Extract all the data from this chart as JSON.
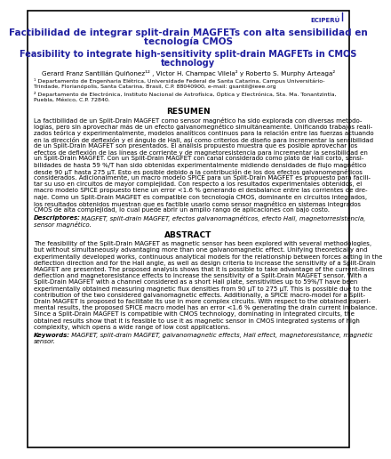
{
  "bg_color": "#ffffff",
  "border_color": "#000000",
  "title_es_line1": "Factibilidad de integrar split-drain MAGFETs con alta sensibilidad en",
  "title_es_line2": "tecnología CMOS",
  "title_en_line1": "Feasibility to integrate high-sensitivity split-drain MAGFETs in CMOS",
  "title_en_line2": "technology",
  "authors": "Gerard Franz Santillán Quiñonez¹² , Victor H. Champac Vilela² y Roberto S. Murphy Arteaga²",
  "affil1_line1": "¹ Departamento de Engenharia Elétrica, Universidade Federal de Santa Catarina, Campus Universitário-",
  "affil1_line2": "Trindade, Florianópolis, Santa Catarina, Brasil, C.P. 88040900, e-mail: gsantil@ieee.org",
  "affil2_line1": "² Departamento de Electrónica, Instituto Nacional de Astrofísica, Óptica y Electrónica, Sta. Ma. Tonantzintla,",
  "affil2_line2": "Puebla, México, C.P. 72840.",
  "resumen_title": "RESUMEN",
  "resumen_lines": [
    "La factibilidad de un Split-Drain MAGFET como sensor magnético ha sido explorada con diversas metodo-",
    "logías, pero sin aprovechar más de un efecto galvanomegnético simultáneamente. Unificando trabajos reali-",
    "zados teórica y experimentalmente, modelos analíticos continuos para la relación entre las fuerzas actuando",
    "en la dirección de deflexión y el ángulo de Hall, así como criterios de diseño para incrementar la sensibilidad",
    "de un Split-Drain MAGFET son presentados. El análisis propuesto muestra que es posible aprovechar los",
    "efectos de deflexión de las líneas de corriente y de magnetoresistencia para incrementar la sensibilidad en",
    "un Split-Drain MAGFET. Con un Split-Drain MAGFET con canal considerado como plato de Hall corto, sensi-",
    "bilidades de hasta 59 %/T han sido obtenidas experimentalmente midiendo densidades de flujo magnético",
    "desde 90 μT hasta 275 μT. Esto es posible debido a la contribución de los dos efectos galvanomegnéticos",
    "considerados. Adicionalmente, un macro modelo SPICE para un Split-Drain MAGFET es propuesto para facili-",
    "tar su uso en circuitos de mayor complejidad. Con respecto a los resultados experimentales obtenidos, el",
    "macro modelo SPICE propuesto tiene un error <1.6 % generando el desbalance entre las corrientes de dre-",
    "naje. Como un Split-Drain MAGFET es compatible con tecnología CMOS, dominante en circuitos integrados,",
    "los resultados obtenidos muestran que es factible usarlo como sensor magnético en sistemas integrados",
    "CMOS de alta complejidad, lo cual puede abrir un amplio rango de aplicaciones con bajo costo."
  ],
  "descriptores_label": "Descriptores:",
  "descriptores_lines": [
    " MAGFET, split-drain MAGFET, efectos galvanomagnéticos, efecto Hall, magnetorresistencia,",
    "sensor magnético."
  ],
  "abstract_title": "ABSTRACT",
  "abstract_lines": [
    "The feasibility of the Split-Drain MAGFET as magnetic sensor has been explored with several methodologies,",
    "but without simultaneously advantaging more than one galvanomagnetic effect. Unifying theoretically and",
    "experimentally developed works, continuous analytical models for the relationship between forces acting in the",
    "deflection direction and for the Hall angle, as well as design criteria to increase the sensitivity of a Split-Drain",
    "MAGFET are presented. The proposed analysis shows that it is possible to take advantage of the current-lines",
    "deflection and magnetoresistance effects to increase the sensitivity of a Split-Drain MAGFET sensor. With a",
    "Split-Drain MAGFET with a channel considered as a short Hall plate, sensitivities up to 59%/T have been",
    "experimentally obtained measuring magnetic flux densities from 90 μT to 275 μT. This is possible due to the",
    "contribution of the two considered galvanomagnetic effects. Additionally, a SPICE macro-model for a Split-",
    "Drain MAGFET is proposed to facilitate its use in more complex circuits. With respect to the obtained experi-",
    "mental results, the proposed SPICE macro model has an error <1.6 % generating the drain current imbalance.",
    "Since a Split-Drain MAGFET is compatible with CMOS technology, dominating in integrated circuits, the",
    "obtained results show that it is feasible to use it as magnetic sensor in CMOS integrated systems of high",
    "complexity, which opens a wide range of low cost applications."
  ],
  "keywords_label": "Keywords:",
  "keywords_lines": [
    " MAGFET, split-drain MAGFET, galvanomagnetic effects, Hall effect, magnetoresistance, magnetic",
    "sensor."
  ],
  "eciperu_text": "ECIPERÚ",
  "title_es_color": "#1f1fa0",
  "title_en_color": "#1f1fa0",
  "eciperu_color": "#1f1fa0",
  "body_color": "#000000",
  "section_title_color": "#000000"
}
